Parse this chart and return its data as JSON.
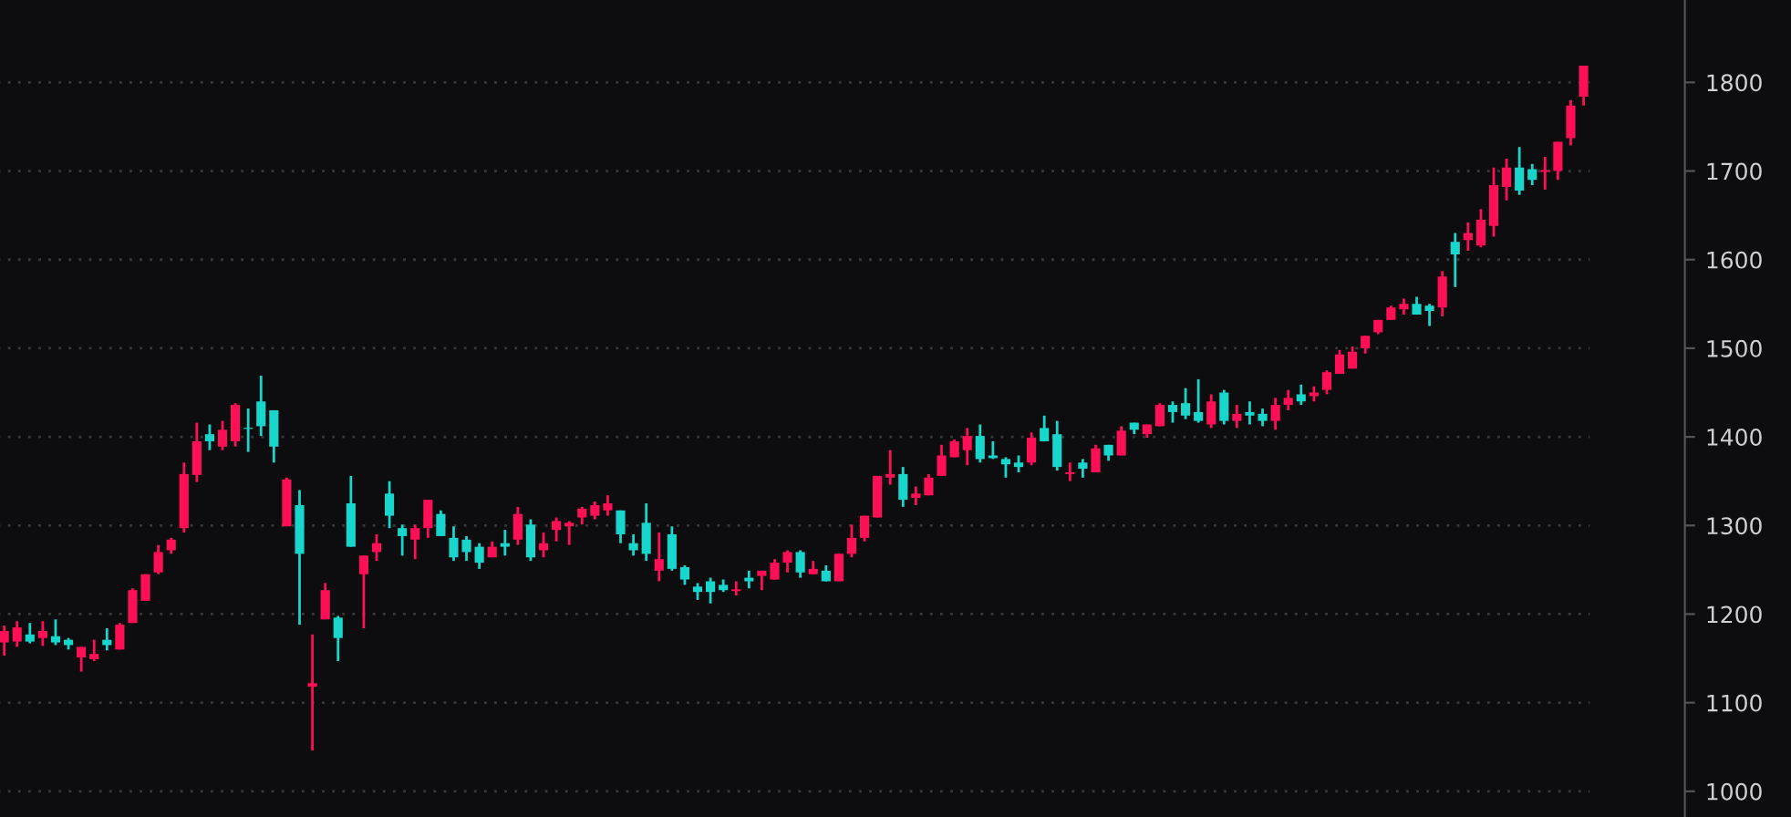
{
  "chart_data": {
    "type": "candlestick",
    "categories": [
      null,
      null,
      null,
      null,
      null,
      null,
      null,
      null,
      null,
      null,
      null,
      null,
      null,
      null,
      null,
      null,
      null,
      null,
      null,
      null,
      null,
      null,
      null,
      null,
      null,
      null,
      null,
      null,
      null,
      null,
      null,
      null,
      null,
      null,
      null,
      null,
      null,
      null,
      null,
      null,
      null,
      null,
      null,
      null,
      null,
      null,
      null,
      null,
      null,
      null,
      null,
      null,
      null,
      null,
      null,
      null,
      null,
      null,
      null,
      null,
      null,
      null,
      null,
      null,
      null,
      null,
      null,
      null,
      null,
      null,
      null,
      null,
      null,
      null,
      null,
      null,
      null,
      null,
      null,
      null,
      null,
      null,
      null,
      null,
      null,
      null,
      null,
      null,
      null,
      null,
      null,
      null,
      null,
      null,
      null,
      null,
      null,
      null,
      null,
      null,
      null,
      null,
      null,
      null,
      null,
      null,
      null,
      null,
      null,
      null,
      null,
      null,
      null,
      null,
      null,
      null,
      null,
      null,
      null,
      null,
      null,
      null,
      null,
      null
    ],
    "ohlc": [
      [
        1168,
        1187,
        1153,
        1181
      ],
      [
        1169,
        1192,
        1163,
        1185
      ],
      [
        1177,
        1190,
        1167,
        1169
      ],
      [
        1173,
        1192,
        1164,
        1181
      ],
      [
        1175,
        1194,
        1165,
        1168
      ],
      [
        1171,
        1173,
        1160,
        1165
      ],
      [
        1151,
        1163,
        1135,
        1163
      ],
      [
        1149,
        1171,
        1147,
        1155
      ],
      [
        1171,
        1184,
        1159,
        1165
      ],
      [
        1160,
        1190,
        1160,
        1188
      ],
      [
        1190,
        1229,
        1190,
        1227
      ],
      [
        1215,
        1245,
        1215,
        1245
      ],
      [
        1247,
        1278,
        1245,
        1270
      ],
      [
        1272,
        1286,
        1268,
        1284
      ],
      [
        1297,
        1371,
        1292,
        1358
      ],
      [
        1357,
        1416,
        1349,
        1395
      ],
      [
        1403,
        1414,
        1385,
        1395
      ],
      [
        1389,
        1418,
        1385,
        1408
      ],
      [
        1395,
        1438,
        1389,
        1436
      ],
      [
        1410,
        1432,
        1383,
        1409
      ],
      [
        1440,
        1469,
        1401,
        1412
      ],
      [
        1430,
        1430,
        1371,
        1389
      ],
      [
        1299,
        1354,
        1299,
        1352
      ],
      [
        1323,
        1340,
        1188,
        1268
      ],
      [
        1118,
        1177,
        1046,
        1122
      ],
      [
        1194,
        1235,
        1194,
        1227
      ],
      [
        1196,
        1198,
        1147,
        1173
      ],
      [
        1325,
        1356,
        1276,
        1276
      ],
      [
        1245,
        1266,
        1184,
        1266
      ],
      [
        1270,
        1290,
        1260,
        1280
      ],
      [
        1336,
        1350,
        1297,
        1311
      ],
      [
        1297,
        1301,
        1266,
        1288
      ],
      [
        1284,
        1301,
        1262,
        1297
      ],
      [
        1297,
        1329,
        1286,
        1329
      ],
      [
        1313,
        1317,
        1288,
        1288
      ],
      [
        1286,
        1299,
        1260,
        1264
      ],
      [
        1284,
        1288,
        1260,
        1270
      ],
      [
        1276,
        1280,
        1251,
        1258
      ],
      [
        1264,
        1282,
        1264,
        1276
      ],
      [
        1280,
        1295,
        1266,
        1276
      ],
      [
        1284,
        1321,
        1278,
        1313
      ],
      [
        1301,
        1307,
        1260,
        1264
      ],
      [
        1272,
        1292,
        1264,
        1280
      ],
      [
        1295,
        1309,
        1282,
        1305
      ],
      [
        1299,
        1305,
        1278,
        1303
      ],
      [
        1309,
        1321,
        1301,
        1319
      ],
      [
        1311,
        1327,
        1307,
        1323
      ],
      [
        1317,
        1334,
        1311,
        1325
      ],
      [
        1317,
        1317,
        1280,
        1290
      ],
      [
        1280,
        1290,
        1266,
        1272
      ],
      [
        1303,
        1325,
        1260,
        1268
      ],
      [
        1249,
        1292,
        1237,
        1262
      ],
      [
        1290,
        1299,
        1249,
        1251
      ],
      [
        1253,
        1255,
        1233,
        1239
      ],
      [
        1231,
        1235,
        1216,
        1225
      ],
      [
        1237,
        1241,
        1212,
        1225
      ],
      [
        1233,
        1239,
        1225,
        1227
      ],
      [
        1226,
        1237,
        1221,
        1228
      ],
      [
        1241,
        1249,
        1229,
        1237
      ],
      [
        1243,
        1249,
        1227,
        1249
      ],
      [
        1239,
        1262,
        1239,
        1258
      ],
      [
        1258,
        1272,
        1247,
        1270
      ],
      [
        1270,
        1272,
        1241,
        1247
      ],
      [
        1245,
        1260,
        1245,
        1251
      ],
      [
        1249,
        1255,
        1237,
        1237
      ],
      [
        1237,
        1268,
        1237,
        1268
      ],
      [
        1268,
        1301,
        1264,
        1286
      ],
      [
        1286,
        1311,
        1282,
        1311
      ],
      [
        1309,
        1356,
        1309,
        1356
      ],
      [
        1354,
        1385,
        1346,
        1358
      ],
      [
        1358,
        1366,
        1321,
        1329
      ],
      [
        1331,
        1344,
        1323,
        1336
      ],
      [
        1334,
        1358,
        1334,
        1354
      ],
      [
        1356,
        1391,
        1356,
        1379
      ],
      [
        1377,
        1397,
        1377,
        1395
      ],
      [
        1385,
        1410,
        1368,
        1401
      ],
      [
        1401,
        1414,
        1371,
        1375
      ],
      [
        1379,
        1395,
        1375,
        1376
      ],
      [
        1375,
        1377,
        1354,
        1369
      ],
      [
        1371,
        1379,
        1360,
        1366
      ],
      [
        1371,
        1405,
        1368,
        1399
      ],
      [
        1410,
        1424,
        1395,
        1395
      ],
      [
        1403,
        1418,
        1362,
        1366
      ],
      [
        1358,
        1371,
        1350,
        1360
      ],
      [
        1371,
        1375,
        1354,
        1364
      ],
      [
        1360,
        1391,
        1360,
        1387
      ],
      [
        1391,
        1391,
        1373,
        1379
      ],
      [
        1379,
        1412,
        1379,
        1407
      ],
      [
        1416,
        1416,
        1403,
        1408
      ],
      [
        1403,
        1414,
        1399,
        1414
      ],
      [
        1412,
        1438,
        1412,
        1436
      ],
      [
        1436,
        1440,
        1416,
        1428
      ],
      [
        1438,
        1455,
        1420,
        1424
      ],
      [
        1428,
        1465,
        1416,
        1418
      ],
      [
        1414,
        1448,
        1410,
        1440
      ],
      [
        1450,
        1453,
        1414,
        1418
      ],
      [
        1418,
        1436,
        1410,
        1426
      ],
      [
        1428,
        1440,
        1414,
        1424
      ],
      [
        1426,
        1432,
        1412,
        1418
      ],
      [
        1418,
        1444,
        1408,
        1436
      ],
      [
        1436,
        1453,
        1430,
        1444
      ],
      [
        1448,
        1459,
        1436,
        1440
      ],
      [
        1446,
        1457,
        1440,
        1450
      ],
      [
        1453,
        1475,
        1448,
        1473
      ],
      [
        1471,
        1498,
        1471,
        1493
      ],
      [
        1477,
        1502,
        1477,
        1496
      ],
      [
        1500,
        1514,
        1494,
        1514
      ],
      [
        1518,
        1532,
        1516,
        1532
      ],
      [
        1532,
        1548,
        1532,
        1546
      ],
      [
        1544,
        1556,
        1538,
        1550
      ],
      [
        1550,
        1558,
        1538,
        1538
      ],
      [
        1548,
        1550,
        1525,
        1542
      ],
      [
        1546,
        1587,
        1536,
        1581
      ],
      [
        1620,
        1630,
        1569,
        1606
      ],
      [
        1622,
        1642,
        1610,
        1630
      ],
      [
        1616,
        1657,
        1614,
        1645
      ],
      [
        1638,
        1704,
        1626,
        1684
      ],
      [
        1682,
        1714,
        1667,
        1704
      ],
      [
        1704,
        1727,
        1673,
        1678
      ],
      [
        1702,
        1708,
        1684,
        1690
      ],
      [
        1699,
        1716,
        1679,
        1701
      ],
      [
        1700,
        1733,
        1690,
        1733
      ],
      [
        1737,
        1780,
        1729,
        1774
      ],
      [
        1784,
        1819,
        1774,
        1819
      ]
    ],
    "colors": [
      "#ff0f55",
      "#ff0f55",
      "#19d6cc",
      "#ff0f55",
      "#19d6cc",
      "#19d6cc",
      "#ff0f55",
      "#ff0f55",
      "#19d6cc",
      "#ff0f55",
      "#ff0f55",
      "#ff0f55",
      "#ff0f55",
      "#ff0f55",
      "#ff0f55",
      "#ff0f55",
      "#19d6cc",
      "#ff0f55",
      "#ff0f55",
      "#19d6cc",
      "#19d6cc",
      "#19d6cc",
      "#ff0f55",
      "#19d6cc",
      "#ff0f55",
      "#ff0f55",
      "#19d6cc",
      "#19d6cc",
      "#ff0f55",
      "#ff0f55",
      "#19d6cc",
      "#19d6cc",
      "#ff0f55",
      "#ff0f55",
      "#19d6cc",
      "#19d6cc",
      "#19d6cc",
      "#19d6cc",
      "#ff0f55",
      "#19d6cc",
      "#ff0f55",
      "#19d6cc",
      "#ff0f55",
      "#ff0f55",
      "#ff0f55",
      "#ff0f55",
      "#ff0f55",
      "#ff0f55",
      "#19d6cc",
      "#19d6cc",
      "#19d6cc",
      "#ff0f55",
      "#19d6cc",
      "#19d6cc",
      "#19d6cc",
      "#19d6cc",
      "#19d6cc",
      "#ff0f55",
      "#19d6cc",
      "#ff0f55",
      "#ff0f55",
      "#ff0f55",
      "#19d6cc",
      "#ff0f55",
      "#19d6cc",
      "#ff0f55",
      "#ff0f55",
      "#ff0f55",
      "#ff0f55",
      "#ff0f55",
      "#19d6cc",
      "#ff0f55",
      "#ff0f55",
      "#ff0f55",
      "#ff0f55",
      "#ff0f55",
      "#19d6cc",
      "#19d6cc",
      "#19d6cc",
      "#19d6cc",
      "#ff0f55",
      "#19d6cc",
      "#19d6cc",
      "#ff0f55",
      "#19d6cc",
      "#ff0f55",
      "#19d6cc",
      "#ff0f55",
      "#19d6cc",
      "#ff0f55",
      "#ff0f55",
      "#19d6cc",
      "#19d6cc",
      "#19d6cc",
      "#ff0f55",
      "#19d6cc",
      "#ff0f55",
      "#19d6cc",
      "#19d6cc",
      "#ff0f55",
      "#ff0f55",
      "#19d6cc",
      "#ff0f55",
      "#ff0f55",
      "#ff0f55",
      "#ff0f55",
      "#ff0f55",
      "#ff0f55",
      "#ff0f55",
      "#ff0f55",
      "#19d6cc",
      "#19d6cc",
      "#ff0f55",
      "#19d6cc",
      "#ff0f55",
      "#ff0f55",
      "#ff0f55",
      "#ff0f55",
      "#19d6cc",
      "#19d6cc",
      "#ff0f55",
      "#ff0f55",
      "#ff0f55",
      "#ff0f55"
    ],
    "ylim": [
      971,
      1893
    ],
    "yticks": [
      1000,
      1100,
      1200,
      1300,
      1400,
      1500,
      1600,
      1700,
      1800
    ],
    "grid": "y"
  }
}
